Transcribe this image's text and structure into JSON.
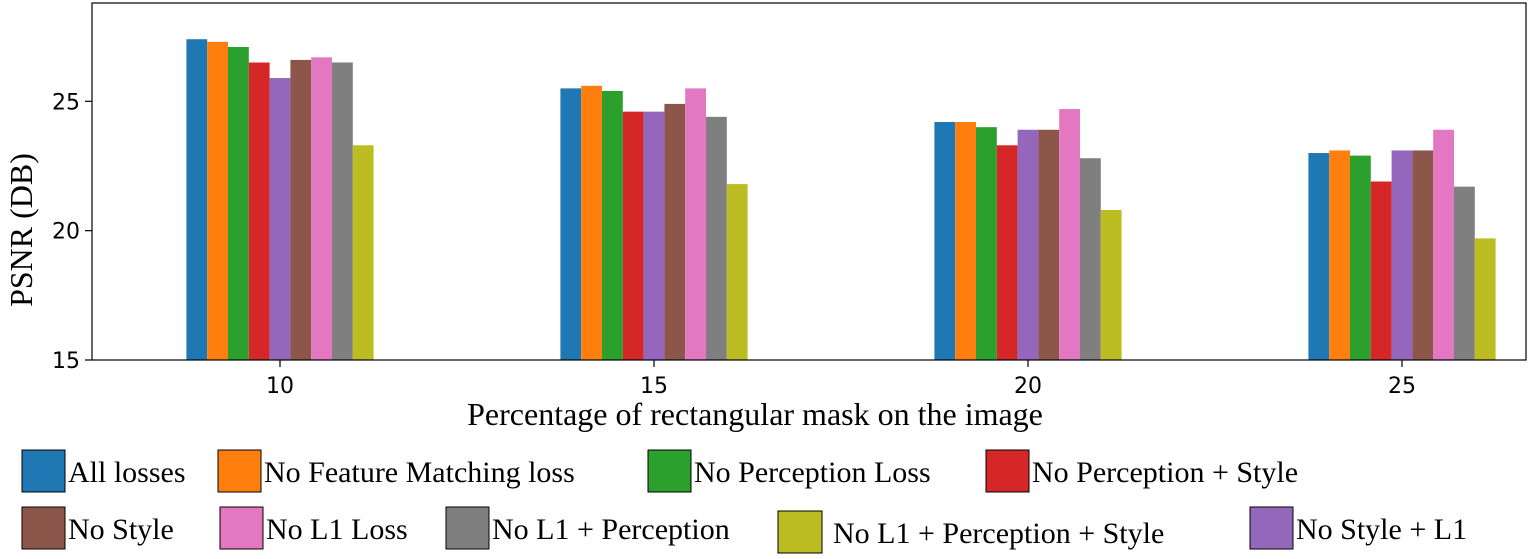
{
  "chart_data": {
    "type": "bar",
    "xlabel": "Percentage of rectangular mask on the image",
    "ylabel": "PSNR (DB)",
    "ylim": [
      15,
      28.8
    ],
    "yticks": [
      15,
      20,
      25
    ],
    "categories": [
      "10",
      "15",
      "20",
      "25"
    ],
    "series": [
      {
        "name": "All losses",
        "color": "#1f77b4",
        "values": [
          27.4,
          25.5,
          24.2,
          23.0
        ]
      },
      {
        "name": "No Feature Matching loss",
        "color": "#ff7f0e",
        "values": [
          27.3,
          25.6,
          24.2,
          23.1
        ]
      },
      {
        "name": "No Perception Loss",
        "color": "#2ca02c",
        "values": [
          27.1,
          25.4,
          24.0,
          22.9
        ]
      },
      {
        "name": "No Perception + Style",
        "color": "#d62728",
        "values": [
          26.5,
          24.6,
          23.3,
          21.9
        ]
      },
      {
        "name": "No Style + L1",
        "color": "#9467bd",
        "values": [
          25.9,
          24.6,
          23.9,
          23.1
        ]
      },
      {
        "name": "No Style",
        "color": "#8c564b",
        "values": [
          26.6,
          24.9,
          23.9,
          23.1
        ]
      },
      {
        "name": "No L1 Loss",
        "color": "#e377c2",
        "values": [
          26.7,
          25.5,
          24.7,
          23.9
        ]
      },
      {
        "name": "No L1 + Perception",
        "color": "#7f7f7f",
        "values": [
          26.5,
          24.4,
          22.8,
          21.7
        ]
      },
      {
        "name": "No L1 + Perception + Style",
        "color": "#bcbd22",
        "values": [
          23.3,
          21.8,
          20.8,
          19.7
        ]
      }
    ],
    "legend": {
      "placement": "bottom",
      "rows": [
        [
          "All losses",
          "No Feature Matching loss",
          "No Perception Loss",
          "No Perception + Style"
        ],
        [
          "No Style",
          "No L1 Loss",
          "No L1 + Perception",
          "No L1 + Perception + Style",
          "No Style + L1"
        ]
      ]
    },
    "grid": false
  }
}
